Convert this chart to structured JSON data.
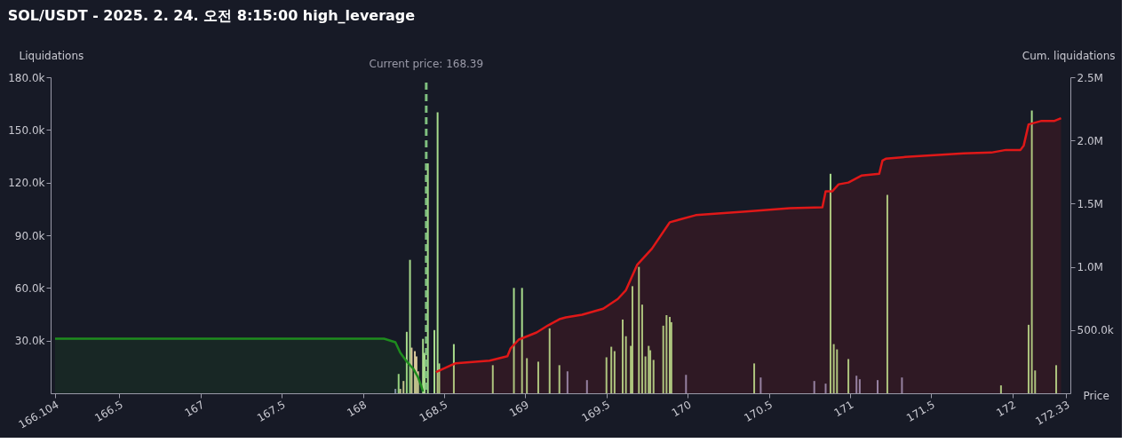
{
  "chart_data": {
    "type": "bar",
    "title": "SOL/USDT - 2025. 2. 24. 오전 8:15:00 high_leverage",
    "xlabel": "Price",
    "ylabel": "Liquidations",
    "y2label": "Cum. liquidations",
    "xlim": [
      166.104,
      172.33
    ],
    "xticks": [
      166.104,
      166.5,
      167,
      167.5,
      168,
      168.5,
      169,
      169.5,
      170,
      170.5,
      171,
      171.5,
      172,
      172.33
    ],
    "ylim": [
      0,
      180000
    ],
    "yticks": [
      {
        "value": 30000,
        "label": "30.0k"
      },
      {
        "value": 60000,
        "label": "60.0k"
      },
      {
        "value": 90000,
        "label": "90.0k"
      },
      {
        "value": 120000,
        "label": "120.0k"
      },
      {
        "value": 150000,
        "label": "150.0k"
      },
      {
        "value": 180000,
        "label": "180.0k"
      }
    ],
    "y2lim": [
      0,
      2500000
    ],
    "y2ticks": [
      {
        "value": 500000,
        "label": "500.0k"
      },
      {
        "value": 1000000,
        "label": "1.0M"
      },
      {
        "value": 1500000,
        "label": "1.5M"
      },
      {
        "value": 2000000,
        "label": "2.0M"
      },
      {
        "value": 2500000,
        "label": "2.5M"
      }
    ],
    "grid": false,
    "series": [
      {
        "x": [
          168.2,
          168.22,
          168.23,
          168.25,
          168.27,
          168.29,
          168.3,
          168.32,
          168.33,
          168.34,
          168.37,
          168.38,
          168.4,
          168.44,
          168.46,
          168.47,
          168.56,
          168.8,
          168.93,
          168.98,
          169.01,
          169.08,
          169.15,
          169.21,
          169.26,
          169.38,
          169.5,
          169.53,
          169.55,
          169.6,
          169.62,
          169.65,
          169.66,
          169.7,
          169.72,
          169.74,
          169.76,
          169.77,
          169.79,
          169.85,
          169.87,
          169.89,
          169.9,
          169.99,
          170.41,
          170.45,
          170.78,
          170.85,
          170.88,
          170.9,
          170.92,
          170.99,
          171.04,
          171.06,
          171.17,
          171.23,
          171.32,
          171.93,
          172.1,
          172.12,
          172.14,
          172.27
        ],
        "values": [
          2500,
          11000,
          2500,
          7000,
          35000,
          76000,
          26000,
          24000,
          21000,
          12500,
          31000,
          23000,
          131000,
          36000,
          160000,
          17000,
          28000,
          16000,
          60000,
          60000,
          20000,
          18000,
          37000,
          16000,
          12500,
          7500,
          20500,
          26500,
          24000,
          42000,
          32500,
          27000,
          61000,
          72000,
          50500,
          21000,
          27000,
          24500,
          19000,
          38500,
          44500,
          43500,
          40500,
          10500,
          17000,
          9000,
          7000,
          5500,
          125000,
          28000,
          25000,
          19500,
          10000,
          8000,
          7500,
          113000,
          9000,
          4500,
          39000,
          161000,
          13000,
          16000
        ],
        "colors": [
          "#8c90b4",
          "#a8dc8c",
          "#d9c99b",
          "#d9c99b",
          "#a8dc8c",
          "#a8dc8c",
          "#d9c99b",
          "#d9c99b",
          "#d9c99b",
          "#d9c99b",
          "#a8dc8c",
          "#a8dc8c",
          "#a8dc8c",
          "#a8dc8c",
          "#a8dc8c",
          "#a8dc8c",
          "#a8dc8c",
          "#a8dc8c",
          "#a8dc8c",
          "#a8dc8c",
          "#a8dc8c",
          "#a8dc8c",
          "#a8dc8c",
          "#a8dc8c",
          "#8c90b4",
          "#8c90b4",
          "#a8dc8c",
          "#a8dc8c",
          "#a8dc8c",
          "#a8dc8c",
          "#a8dc8c",
          "#a8dc8c",
          "#a8dc8c",
          "#a8dc8c",
          "#a8dc8c",
          "#a8dc8c",
          "#a8dc8c",
          "#a8dc8c",
          "#a8dc8c",
          "#a8dc8c",
          "#a8dc8c",
          "#a8dc8c",
          "#a8dc8c",
          "#8c90b4",
          "#a8dc8c",
          "#8c90b4",
          "#8c90b4",
          "#8c90b4",
          "#a8dc8c",
          "#a8dc8c",
          "#a8dc8c",
          "#a8dc8c",
          "#8c90b4",
          "#8c90b4",
          "#8c90b4",
          "#a8dc8c",
          "#8c90b4",
          "#a8dc8c",
          "#a8dc8c",
          "#a8dc8c",
          "#a8dc8c",
          "#a8dc8c"
        ]
      },
      {
        "type": "area",
        "axis": "y2",
        "color": "#1e8c1e",
        "x": [
          166.104,
          168.13,
          168.2,
          168.23,
          168.27,
          168.31,
          168.34,
          168.36,
          168.37
        ],
        "values": [
          432000,
          432000,
          404000,
          321000,
          251000,
          195000,
          126000,
          56000,
          14000
        ]
      },
      {
        "type": "area",
        "axis": "y2",
        "color": "#e01818",
        "x": [
          168.45,
          168.57,
          168.78,
          168.89,
          168.91,
          168.96,
          169.07,
          169.14,
          169.21,
          169.25,
          169.35,
          169.48,
          169.57,
          169.62,
          169.69,
          169.78,
          169.89,
          170.05,
          170.36,
          170.63,
          170.83,
          170.85,
          170.89,
          170.93,
          170.99,
          171.07,
          171.18,
          171.2,
          171.22,
          171.34,
          171.52,
          171.7,
          171.87,
          171.96,
          172.05,
          172.07,
          172.1,
          172.14,
          172.18,
          172.26,
          172.3
        ],
        "values": [
          167000,
          237000,
          258000,
          293000,
          356000,
          425000,
          481000,
          537000,
          586000,
          600000,
          621000,
          669000,
          746000,
          816000,
          1018000,
          1144000,
          1353000,
          1409000,
          1437000,
          1464000,
          1471000,
          1597000,
          1597000,
          1653000,
          1667000,
          1722000,
          1736000,
          1841000,
          1855000,
          1869000,
          1883000,
          1897000,
          1904000,
          1925000,
          1925000,
          1960000,
          2127000,
          2141000,
          2155000,
          2155000,
          2176000
        ]
      }
    ],
    "ref_lines": [
      {
        "axis": "x",
        "value": 168.39,
        "label": "Current price: 168.39",
        "color": "#7fbf7f",
        "line_style": "dashed"
      }
    ]
  }
}
